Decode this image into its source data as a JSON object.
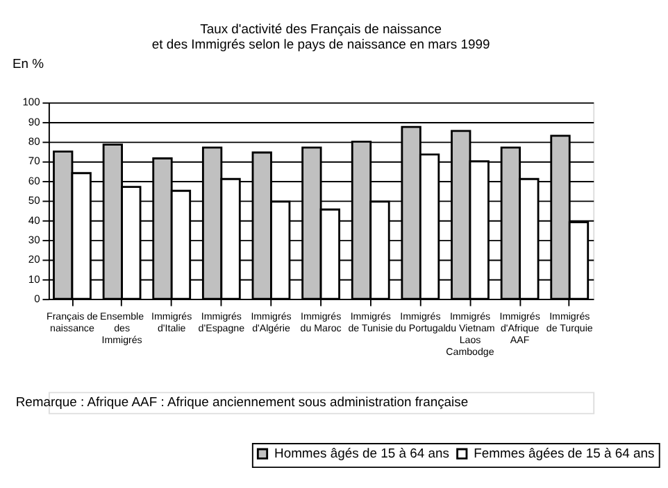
{
  "chart_data": {
    "type": "bar",
    "title": [
      "Taux d'activité des Français de naissance",
      "et des Immigrés selon le pays de naissance en mars 1999"
    ],
    "ylabel": "En %",
    "categories": [
      "Français de\nnaissance",
      "Ensemble\ndes\nImmigrés",
      "Immigrés\nd'Italie",
      "Immigrés\nd'Espagne",
      "Immigrés\nd'Algérie",
      "Immigrés\ndu Maroc",
      "Immigrés\nde Tunisie",
      "Immigrés\ndu Portugal",
      "Immigrés\ndu Vietnam\nLaos\nCambodge",
      "Immigrés\nd'Afrique\nAAF",
      "Immigrés\nde Turquie"
    ],
    "series": [
      {
        "name": "Hommes âgés de 15 à 64 ans",
        "color": "#c0c0c0",
        "values": [
          75,
          78.5,
          71.5,
          77,
          74.5,
          77,
          80,
          87.5,
          85.5,
          77,
          83
        ]
      },
      {
        "name": "Femmes âgées de 15 à 64 ans",
        "color": "#ffffff",
        "values": [
          64,
          57,
          55,
          61,
          49.5,
          45.5,
          49.5,
          73.5,
          70,
          61,
          39
        ]
      }
    ],
    "ylim": [
      0,
      100
    ],
    "yticks": [
      0,
      10,
      20,
      30,
      40,
      50,
      60,
      70,
      80,
      90,
      100
    ],
    "grid": "y",
    "legend": "bottom right",
    "annotations": [
      "Remarque : Afrique AAF : Afrique anciennement sous administration française"
    ]
  }
}
